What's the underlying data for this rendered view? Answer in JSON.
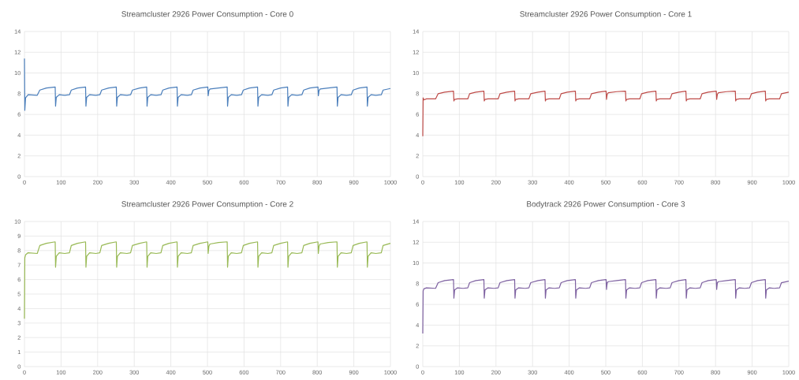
{
  "chart_data": [
    {
      "type": "line",
      "title": "Streamcluster 2926 Power Consumption - Core 0",
      "grid": true,
      "xlim": [
        0,
        1000
      ],
      "xticks": [
        0,
        100,
        200,
        300,
        400,
        500,
        600,
        700,
        800,
        900,
        1000
      ],
      "ylim": [
        0,
        14
      ],
      "yticks": [
        0,
        2,
        4,
        6,
        8,
        10,
        12,
        14
      ],
      "x": [
        0,
        1,
        3,
        10,
        35,
        42,
        60,
        84,
        85,
        87,
        95,
        110,
        123,
        128,
        145,
        167,
        168,
        170,
        178,
        195,
        206,
        211,
        230,
        251,
        252,
        254,
        262,
        280,
        290,
        295,
        315,
        334,
        335,
        337,
        345,
        360,
        373,
        378,
        395,
        417,
        418,
        420,
        428,
        445,
        456,
        461,
        480,
        501,
        502,
        504,
        507,
        530,
        554,
        555,
        557,
        565,
        580,
        593,
        598,
        615,
        637,
        638,
        640,
        648,
        665,
        676,
        681,
        700,
        719,
        720,
        722,
        730,
        745,
        758,
        763,
        780,
        802,
        803,
        805,
        808,
        830,
        854,
        855,
        857,
        865,
        880,
        893,
        898,
        915,
        936,
        937,
        939,
        947,
        960,
        975,
        980,
        1000
      ],
      "series": [
        {
          "color": "#4a7ebb",
          "values": [
            11.4,
            6.4,
            7.6,
            7.9,
            7.85,
            8.35,
            8.55,
            8.65,
            6.8,
            7.65,
            7.9,
            7.85,
            7.9,
            8.35,
            8.55,
            8.65,
            6.8,
            7.65,
            7.9,
            7.85,
            7.9,
            8.35,
            8.55,
            8.65,
            6.8,
            7.65,
            7.9,
            7.85,
            7.9,
            8.35,
            8.55,
            8.65,
            6.8,
            7.65,
            7.9,
            7.85,
            7.9,
            8.35,
            8.55,
            8.65,
            6.8,
            7.65,
            7.9,
            7.85,
            7.9,
            8.35,
            8.55,
            8.65,
            7.8,
            8.3,
            8.45,
            8.55,
            8.65,
            6.8,
            7.65,
            7.9,
            7.85,
            7.9,
            8.35,
            8.55,
            8.65,
            6.8,
            7.65,
            7.9,
            7.85,
            7.9,
            8.35,
            8.55,
            8.65,
            6.8,
            7.65,
            7.9,
            7.85,
            7.9,
            8.35,
            8.55,
            8.65,
            7.8,
            8.3,
            8.45,
            8.55,
            8.65,
            6.8,
            7.65,
            7.9,
            7.85,
            7.9,
            8.35,
            8.55,
            8.65,
            6.8,
            7.65,
            7.9,
            7.85,
            7.9,
            8.35,
            8.5
          ]
        }
      ]
    },
    {
      "type": "line",
      "title": "Streamcluster 2926 Power Consumption - Core 1",
      "grid": true,
      "xlim": [
        0,
        1000
      ],
      "xticks": [
        0,
        100,
        200,
        300,
        400,
        500,
        600,
        700,
        800,
        900,
        1000
      ],
      "ylim": [
        0,
        14
      ],
      "yticks": [
        0,
        2,
        4,
        6,
        8,
        10,
        12,
        14
      ],
      "x": [
        0,
        1,
        3,
        10,
        35,
        42,
        60,
        84,
        85,
        87,
        95,
        110,
        123,
        128,
        145,
        167,
        168,
        170,
        178,
        195,
        206,
        211,
        230,
        251,
        252,
        254,
        262,
        280,
        290,
        295,
        315,
        334,
        335,
        337,
        345,
        360,
        373,
        378,
        395,
        417,
        418,
        420,
        428,
        445,
        456,
        461,
        480,
        501,
        502,
        504,
        507,
        530,
        554,
        555,
        557,
        565,
        580,
        593,
        598,
        615,
        637,
        638,
        640,
        648,
        665,
        676,
        681,
        700,
        719,
        720,
        722,
        730,
        745,
        758,
        763,
        780,
        802,
        803,
        805,
        808,
        830,
        854,
        855,
        857,
        865,
        880,
        893,
        898,
        915,
        936,
        937,
        939,
        947,
        960,
        975,
        980,
        1000
      ],
      "series": [
        {
          "color": "#be4b48",
          "values": [
            3.9,
            7.6,
            7.4,
            7.5,
            7.5,
            8.0,
            8.15,
            8.25,
            7.3,
            7.45,
            7.5,
            7.5,
            7.5,
            8.0,
            8.15,
            8.25,
            7.3,
            7.45,
            7.5,
            7.5,
            7.5,
            8.0,
            8.15,
            8.25,
            7.3,
            7.45,
            7.5,
            7.5,
            7.5,
            8.0,
            8.15,
            8.25,
            7.3,
            7.45,
            7.5,
            7.5,
            7.5,
            8.0,
            8.15,
            8.25,
            7.3,
            7.45,
            7.5,
            7.5,
            7.5,
            8.0,
            8.15,
            8.25,
            7.45,
            7.95,
            8.1,
            8.2,
            8.25,
            7.3,
            7.45,
            7.5,
            7.5,
            7.5,
            8.0,
            8.15,
            8.25,
            7.3,
            7.45,
            7.5,
            7.5,
            7.5,
            8.0,
            8.15,
            8.25,
            7.3,
            7.45,
            7.5,
            7.5,
            7.5,
            8.0,
            8.15,
            8.25,
            7.45,
            7.95,
            8.1,
            8.2,
            8.25,
            7.3,
            7.45,
            7.5,
            7.5,
            7.5,
            8.0,
            8.15,
            8.25,
            7.3,
            7.45,
            7.5,
            7.5,
            7.5,
            8.0,
            8.15
          ]
        }
      ]
    },
    {
      "type": "line",
      "title": "Streamcluster 2926 Power Consumption - Core 2",
      "grid": true,
      "xlim": [
        0,
        1000
      ],
      "xticks": [
        0,
        100,
        200,
        300,
        400,
        500,
        600,
        700,
        800,
        900,
        1000
      ],
      "ylim": [
        0,
        10
      ],
      "yticks": [
        0,
        1,
        2,
        3,
        4,
        5,
        6,
        7,
        8,
        9,
        10
      ],
      "x": [
        0,
        1,
        3,
        10,
        35,
        42,
        60,
        84,
        85,
        87,
        95,
        110,
        123,
        128,
        145,
        167,
        168,
        170,
        178,
        195,
        206,
        211,
        230,
        251,
        252,
        254,
        262,
        280,
        290,
        295,
        315,
        334,
        335,
        337,
        345,
        360,
        373,
        378,
        395,
        417,
        418,
        420,
        428,
        445,
        456,
        461,
        480,
        501,
        502,
        504,
        507,
        530,
        554,
        555,
        557,
        565,
        580,
        593,
        598,
        615,
        637,
        638,
        640,
        648,
        665,
        676,
        681,
        700,
        719,
        720,
        722,
        730,
        745,
        758,
        763,
        780,
        802,
        803,
        805,
        808,
        830,
        854,
        855,
        857,
        865,
        880,
        893,
        898,
        915,
        936,
        937,
        939,
        947,
        960,
        975,
        980,
        1000
      ],
      "series": [
        {
          "color": "#98b954",
          "values": [
            3.3,
            7.5,
            7.7,
            7.85,
            7.8,
            8.35,
            8.5,
            8.6,
            6.85,
            7.6,
            7.85,
            7.8,
            7.85,
            8.35,
            8.5,
            8.6,
            6.85,
            7.6,
            7.85,
            7.8,
            7.85,
            8.35,
            8.5,
            8.6,
            6.85,
            7.6,
            7.85,
            7.8,
            7.85,
            8.35,
            8.5,
            8.6,
            6.85,
            7.6,
            7.85,
            7.8,
            7.85,
            8.35,
            8.5,
            8.6,
            6.85,
            7.6,
            7.85,
            7.8,
            7.85,
            8.35,
            8.5,
            8.6,
            7.8,
            8.3,
            8.45,
            8.55,
            8.6,
            6.85,
            7.6,
            7.85,
            7.8,
            7.85,
            8.35,
            8.5,
            8.6,
            6.85,
            7.6,
            7.85,
            7.8,
            7.85,
            8.35,
            8.5,
            8.6,
            6.85,
            7.6,
            7.85,
            7.8,
            7.85,
            8.35,
            8.5,
            8.6,
            7.8,
            8.3,
            8.45,
            8.55,
            8.6,
            6.85,
            7.6,
            7.85,
            7.8,
            7.85,
            8.35,
            8.5,
            8.6,
            6.85,
            7.6,
            7.85,
            7.8,
            7.85,
            8.35,
            8.5
          ]
        }
      ]
    },
    {
      "type": "line",
      "title": "Bodytrack 2926 Power Consumption - Core 3",
      "grid": true,
      "xlim": [
        0,
        1000
      ],
      "xticks": [
        0,
        100,
        200,
        300,
        400,
        500,
        600,
        700,
        800,
        900,
        1000
      ],
      "ylim": [
        0,
        14
      ],
      "yticks": [
        0,
        2,
        4,
        6,
        8,
        10,
        12,
        14
      ],
      "x": [
        0,
        1,
        3,
        10,
        35,
        42,
        60,
        84,
        85,
        87,
        95,
        110,
        123,
        128,
        145,
        167,
        168,
        170,
        178,
        195,
        206,
        211,
        230,
        251,
        252,
        254,
        262,
        280,
        290,
        295,
        315,
        334,
        335,
        337,
        345,
        360,
        373,
        378,
        395,
        417,
        418,
        420,
        428,
        445,
        456,
        461,
        480,
        501,
        502,
        504,
        507,
        530,
        554,
        555,
        557,
        565,
        580,
        593,
        598,
        615,
        637,
        638,
        640,
        648,
        665,
        676,
        681,
        700,
        719,
        720,
        722,
        730,
        745,
        758,
        763,
        780,
        802,
        803,
        805,
        808,
        830,
        854,
        855,
        857,
        865,
        880,
        893,
        898,
        915,
        936,
        937,
        939,
        947,
        960,
        975,
        980,
        1000
      ],
      "series": [
        {
          "color": "#7d60a0",
          "values": [
            3.2,
            7.3,
            7.5,
            7.6,
            7.55,
            8.1,
            8.3,
            8.4,
            6.6,
            7.4,
            7.6,
            7.55,
            7.6,
            8.1,
            8.3,
            8.4,
            6.6,
            7.4,
            7.6,
            7.55,
            7.6,
            8.1,
            8.3,
            8.4,
            6.6,
            7.4,
            7.6,
            7.55,
            7.6,
            8.1,
            8.3,
            8.4,
            6.6,
            7.4,
            7.6,
            7.55,
            7.6,
            8.1,
            8.3,
            8.4,
            6.6,
            7.4,
            7.6,
            7.55,
            7.6,
            8.1,
            8.3,
            8.4,
            7.45,
            8.1,
            8.2,
            8.3,
            8.4,
            6.6,
            7.4,
            7.6,
            7.55,
            7.6,
            8.1,
            8.3,
            8.4,
            6.6,
            7.4,
            7.6,
            7.55,
            7.6,
            8.1,
            8.3,
            8.4,
            6.6,
            7.4,
            7.6,
            7.55,
            7.6,
            8.1,
            8.3,
            8.4,
            7.45,
            8.1,
            8.2,
            8.3,
            8.4,
            6.6,
            7.4,
            7.6,
            7.55,
            7.6,
            8.1,
            8.3,
            8.4,
            6.6,
            7.4,
            7.6,
            7.55,
            7.6,
            8.1,
            8.25
          ]
        }
      ]
    }
  ]
}
